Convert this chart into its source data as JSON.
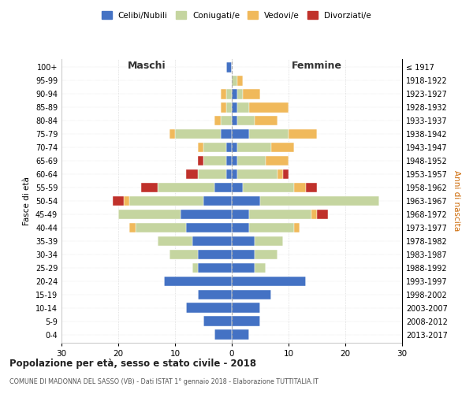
{
  "age_groups": [
    "0-4",
    "5-9",
    "10-14",
    "15-19",
    "20-24",
    "25-29",
    "30-34",
    "35-39",
    "40-44",
    "45-49",
    "50-54",
    "55-59",
    "60-64",
    "65-69",
    "70-74",
    "75-79",
    "80-84",
    "85-89",
    "90-94",
    "95-99",
    "100+"
  ],
  "birth_years": [
    "2013-2017",
    "2008-2012",
    "2003-2007",
    "1998-2002",
    "1993-1997",
    "1988-1992",
    "1983-1987",
    "1978-1982",
    "1973-1977",
    "1968-1972",
    "1963-1967",
    "1958-1962",
    "1953-1957",
    "1948-1952",
    "1943-1947",
    "1938-1942",
    "1933-1937",
    "1928-1932",
    "1923-1927",
    "1918-1922",
    "≤ 1917"
  ],
  "colors": {
    "celibi": "#4472c4",
    "coniugati": "#c5d5a0",
    "vedovi": "#f0b95b",
    "divorziati": "#c0312b"
  },
  "maschi": {
    "celibi": [
      3,
      5,
      8,
      6,
      12,
      6,
      6,
      7,
      8,
      9,
      5,
      3,
      1,
      1,
      1,
      2,
      0,
      0,
      0,
      0,
      1
    ],
    "coniugati": [
      0,
      0,
      0,
      0,
      0,
      1,
      5,
      6,
      9,
      11,
      13,
      10,
      5,
      4,
      4,
      8,
      2,
      1,
      1,
      0,
      0
    ],
    "vedovi": [
      0,
      0,
      0,
      0,
      0,
      0,
      0,
      0,
      1,
      0,
      1,
      0,
      0,
      0,
      1,
      1,
      1,
      1,
      1,
      0,
      0
    ],
    "divorziati": [
      0,
      0,
      0,
      0,
      0,
      0,
      0,
      0,
      0,
      0,
      2,
      3,
      2,
      1,
      0,
      0,
      0,
      0,
      0,
      0,
      0
    ]
  },
  "femmine": {
    "celibi": [
      3,
      5,
      5,
      7,
      13,
      4,
      4,
      4,
      3,
      3,
      5,
      2,
      1,
      1,
      1,
      3,
      1,
      1,
      1,
      0,
      0
    ],
    "coniugati": [
      0,
      0,
      0,
      0,
      0,
      2,
      4,
      5,
      8,
      11,
      21,
      9,
      7,
      5,
      6,
      7,
      3,
      2,
      1,
      1,
      0
    ],
    "vedovi": [
      0,
      0,
      0,
      0,
      0,
      0,
      0,
      0,
      1,
      1,
      0,
      2,
      1,
      4,
      4,
      5,
      4,
      7,
      3,
      1,
      0
    ],
    "divorziati": [
      0,
      0,
      0,
      0,
      0,
      0,
      0,
      0,
      0,
      2,
      0,
      2,
      1,
      0,
      0,
      0,
      0,
      0,
      0,
      0,
      0
    ]
  },
  "xlim": 30,
  "title": "Popolazione per età, sesso e stato civile - 2018",
  "subtitle": "COMUNE DI MADONNA DEL SASSO (VB) - Dati ISTAT 1° gennaio 2018 - Elaborazione TUTTITALIA.IT",
  "ylabel_left": "Fasce di età",
  "ylabel_right": "Anni di nascita",
  "label_maschi": "Maschi",
  "label_femmine": "Femmine",
  "legend_labels": [
    "Celibi/Nubili",
    "Coniugati/e",
    "Vedovi/e",
    "Divorziati/e"
  ],
  "bg_color": "#ffffff",
  "grid_color": "#cccccc"
}
